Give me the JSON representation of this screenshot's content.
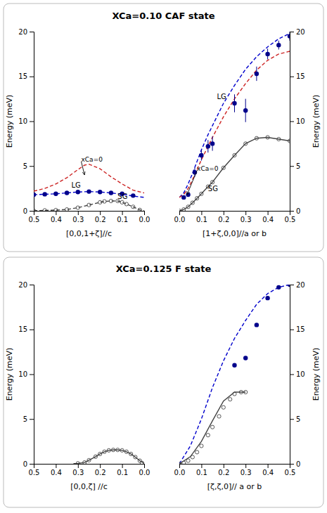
{
  "chart_data": [
    {
      "type": "scatter",
      "title": "XCa=0.10  CAF state",
      "xlabel": "[0,0,1+ζ]//c",
      "ylabel": "Energy (meV)",
      "xlim": [
        0.5,
        0.0
      ],
      "ylim": [
        0,
        20
      ],
      "xticks": [
        0.5,
        0.4,
        0.3,
        0.2,
        0.1,
        {
          "value": 0,
          "label": "0.0"
        }
      ],
      "yticks": [
        0,
        5,
        10,
        15,
        20
      ],
      "grid": false,
      "series": [
        {
          "type": "line",
          "line_style": "dashed",
          "color": "#cc2222",
          "x": [
            0.5,
            0.45,
            0.4,
            0.35,
            0.3,
            0.27,
            0.25,
            0.2,
            0.15,
            0.1,
            0.05,
            0.0
          ],
          "values": [
            2.2,
            2.5,
            3.0,
            3.7,
            4.6,
            5.1,
            5.2,
            4.7,
            3.8,
            3.0,
            2.3,
            2.0
          ]
        },
        {
          "type": "line",
          "line_style": "dashed",
          "color": "#0000CC",
          "x": [
            0.5,
            0.45,
            0.4,
            0.35,
            0.3,
            0.25,
            0.2,
            0.15,
            0.1,
            0.05,
            0.0
          ],
          "values": [
            1.8,
            1.85,
            1.9,
            2.0,
            2.1,
            2.15,
            2.1,
            2.0,
            1.85,
            1.65,
            1.5
          ]
        },
        {
          "type": "line",
          "line_style": "dashed",
          "color": "#444444",
          "x": [
            0.5,
            0.45,
            0.4,
            0.35,
            0.3,
            0.25,
            0.2,
            0.18,
            0.15,
            0.12,
            0.1,
            0.08,
            0.05,
            0.02,
            0.0
          ],
          "values": [
            0.02,
            0.04,
            0.08,
            0.15,
            0.35,
            0.65,
            0.95,
            1.05,
            1.1,
            1.1,
            0.95,
            0.75,
            0.45,
            0.1,
            0.02
          ]
        },
        {
          "type": "scatter",
          "marker": "circle",
          "color": "#00008B",
          "x": [
            0.5,
            0.45,
            0.4,
            0.35,
            0.3,
            0.25,
            0.2,
            0.15,
            0.1,
            0.05
          ],
          "values": [
            1.8,
            1.85,
            1.9,
            2.0,
            2.1,
            2.15,
            2.1,
            2.0,
            1.9,
            1.7
          ]
        },
        {
          "type": "scatter",
          "marker": "hollow",
          "color": "#444444",
          "x": [
            0.5,
            0.45,
            0.4,
            0.35,
            0.3,
            0.25,
            0.2,
            0.18,
            0.15,
            0.12,
            0.1,
            0.08,
            0.05,
            0.02
          ],
          "values": [
            0.03,
            0.05,
            0.08,
            0.15,
            0.35,
            0.65,
            0.95,
            1.05,
            1.1,
            1.1,
            0.95,
            0.75,
            0.45,
            0.1
          ]
        }
      ],
      "annotations": [
        {
          "text": "xCa=0",
          "x": 0.285,
          "y": 5.5,
          "arrow_x": 0.27,
          "arrow_y": 4.0
        },
        {
          "text": "LG",
          "x": 0.33,
          "y": 2.6
        },
        {
          "text": "SG",
          "x": 0.12,
          "y": 1.3
        }
      ]
    },
    {
      "type": "scatter",
      "xlabel": "[1+ζ,0,0]//a or b",
      "ylabel": "Energy (meV)",
      "xlim": [
        0.0,
        0.5
      ],
      "ylim": [
        0,
        20
      ],
      "xticks": [
        {
          "value": 0,
          "label": "0.0"
        },
        0.1,
        0.2,
        0.3,
        0.4,
        0.5
      ],
      "yticks": [
        0,
        5,
        10,
        15,
        20
      ],
      "grid": false,
      "series": [
        {
          "type": "line",
          "line_style": "dashed",
          "color": "#0000CC",
          "x": [
            0.0,
            0.02,
            0.04,
            0.06,
            0.08,
            0.1,
            0.13,
            0.15,
            0.2,
            0.25,
            0.3,
            0.35,
            0.4,
            0.45,
            0.5
          ],
          "values": [
            1.5,
            2.0,
            3.0,
            4.2,
            5.5,
            6.8,
            8.5,
            9.5,
            12.0,
            14.0,
            15.8,
            17.2,
            18.3,
            19.2,
            19.8
          ]
        },
        {
          "type": "line",
          "line_style": "dashed",
          "color": "#cc2222",
          "x": [
            0.0,
            0.02,
            0.04,
            0.06,
            0.08,
            0.1,
            0.13,
            0.15,
            0.2,
            0.25,
            0.3,
            0.35,
            0.4,
            0.45,
            0.5
          ],
          "values": [
            1.5,
            1.8,
            2.5,
            3.5,
            4.6,
            5.7,
            7.2,
            8.2,
            10.5,
            12.5,
            14.2,
            15.7,
            16.8,
            17.5,
            17.8
          ]
        },
        {
          "type": "line",
          "line_style": "solid",
          "color": "#444444",
          "x": [
            0.0,
            0.02,
            0.04,
            0.06,
            0.08,
            0.1,
            0.13,
            0.15,
            0.2,
            0.25,
            0.3,
            0.35,
            0.4,
            0.45,
            0.5
          ],
          "values": [
            0.0,
            0.15,
            0.45,
            0.9,
            1.4,
            1.9,
            2.7,
            3.2,
            4.8,
            6.2,
            7.5,
            8.1,
            8.2,
            8.0,
            7.8
          ]
        },
        {
          "type": "scatter",
          "marker": "circle",
          "color": "#00008B",
          "x": [
            0.02,
            0.04,
            0.07,
            0.1,
            0.13,
            0.15,
            0.25,
            0.3,
            0.35,
            0.4,
            0.45,
            0.5
          ],
          "values": [
            1.5,
            1.8,
            4.3,
            6.2,
            7.2,
            7.5,
            12.0,
            11.2,
            15.3,
            17.5,
            18.5,
            19.5
          ],
          "errors": [
            0.0,
            0.0,
            0.5,
            0.6,
            0.7,
            0.8,
            1.0,
            1.3,
            0.8,
            0.6,
            0.5,
            0.5
          ]
        },
        {
          "type": "scatter",
          "marker": "hollow",
          "color": "#444444",
          "x": [
            0.0,
            0.02,
            0.04,
            0.06,
            0.08,
            0.1,
            0.13,
            0.15,
            0.2,
            0.25,
            0.3,
            0.35,
            0.4,
            0.45,
            0.5
          ],
          "values": [
            0.0,
            0.15,
            0.45,
            0.9,
            1.4,
            1.9,
            2.7,
            3.2,
            4.8,
            6.2,
            7.5,
            8.1,
            8.2,
            8.0,
            7.8
          ]
        }
      ],
      "annotations": [
        {
          "text": "xCa=0",
          "x": 0.08,
          "y": 4.5,
          "arrow_x": 0.035,
          "arrow_y": 1.8
        },
        {
          "text": "LG",
          "x": 0.17,
          "y": 12.5
        },
        {
          "text": "SG",
          "x": 0.13,
          "y": 2.2
        }
      ]
    },
    {
      "type": "scatter",
      "title": "XCa=0.125  F state",
      "xlabel": "[0,0,ζ] //c",
      "ylabel": "Energy (meV)",
      "xlim": [
        0.5,
        0.0
      ],
      "ylim": [
        0,
        20
      ],
      "xticks": [
        0.5,
        0.4,
        0.3,
        0.2,
        0.1,
        {
          "value": 0,
          "label": "0.0"
        }
      ],
      "yticks": [
        0,
        5,
        10,
        15,
        20
      ],
      "grid": false,
      "series": [
        {
          "type": "line",
          "line_style": "solid",
          "color": "#444444",
          "x": [
            0.32,
            0.3,
            0.27,
            0.25,
            0.22,
            0.2,
            0.18,
            0.16,
            0.14,
            0.12,
            0.1,
            0.08,
            0.06,
            0.04,
            0.02,
            0.0
          ],
          "values": [
            0.02,
            0.05,
            0.15,
            0.4,
            0.8,
            1.1,
            1.35,
            1.5,
            1.55,
            1.55,
            1.5,
            1.35,
            1.1,
            0.75,
            0.35,
            0.05
          ]
        },
        {
          "type": "scatter",
          "marker": "hollow",
          "color": "#444444",
          "x": [
            0.3,
            0.27,
            0.25,
            0.22,
            0.2,
            0.18,
            0.16,
            0.14,
            0.12,
            0.1,
            0.08,
            0.06,
            0.04,
            0.02,
            0.01
          ],
          "values": [
            0.05,
            0.15,
            0.4,
            0.8,
            1.1,
            1.35,
            1.5,
            1.55,
            1.55,
            1.5,
            1.35,
            1.1,
            0.75,
            0.35,
            0.1
          ]
        }
      ]
    },
    {
      "type": "scatter",
      "xlabel": "[ζ,ζ,0]// a or b",
      "ylabel": "Energy (meV)",
      "xlim": [
        0.0,
        0.5
      ],
      "ylim": [
        0,
        20
      ],
      "xticks": [
        {
          "value": 0,
          "label": "0.0"
        },
        0.1,
        0.2,
        0.3,
        0.4,
        0.5
      ],
      "yticks": [
        0,
        5,
        10,
        15,
        20
      ],
      "grid": false,
      "series": [
        {
          "type": "line",
          "line_style": "dashed",
          "color": "#0000CC",
          "x": [
            0.0,
            0.05,
            0.1,
            0.15,
            0.2,
            0.25,
            0.3,
            0.35,
            0.4,
            0.45,
            0.5
          ],
          "values": [
            0.0,
            2.0,
            5.0,
            8.5,
            11.5,
            14.0,
            16.0,
            17.8,
            19.0,
            19.7,
            20.0
          ]
        },
        {
          "type": "line",
          "line_style": "solid",
          "color": "#444444",
          "x": [
            0.0,
            0.05,
            0.1,
            0.15,
            0.2,
            0.25,
            0.3
          ],
          "values": [
            0.0,
            0.8,
            2.5,
            4.8,
            7.0,
            8.0,
            8.0
          ]
        },
        {
          "type": "scatter",
          "marker": "circle",
          "color": "#00008B",
          "x": [
            0.25,
            0.3,
            0.35,
            0.4,
            0.45,
            0.5
          ],
          "values": [
            11.0,
            11.8,
            15.5,
            18.5,
            19.7,
            20.0
          ]
        },
        {
          "type": "scatter",
          "marker": "hollow",
          "color": "#444444",
          "x": [
            0.0,
            0.02,
            0.04,
            0.06,
            0.08,
            0.1,
            0.13,
            0.15,
            0.18,
            0.2,
            0.23,
            0.25,
            0.28,
            0.3
          ],
          "values": [
            0.0,
            0.1,
            0.35,
            0.75,
            1.3,
            2.0,
            3.2,
            4.1,
            5.3,
            6.3,
            7.2,
            7.8,
            8.0,
            8.0
          ]
        }
      ]
    }
  ]
}
